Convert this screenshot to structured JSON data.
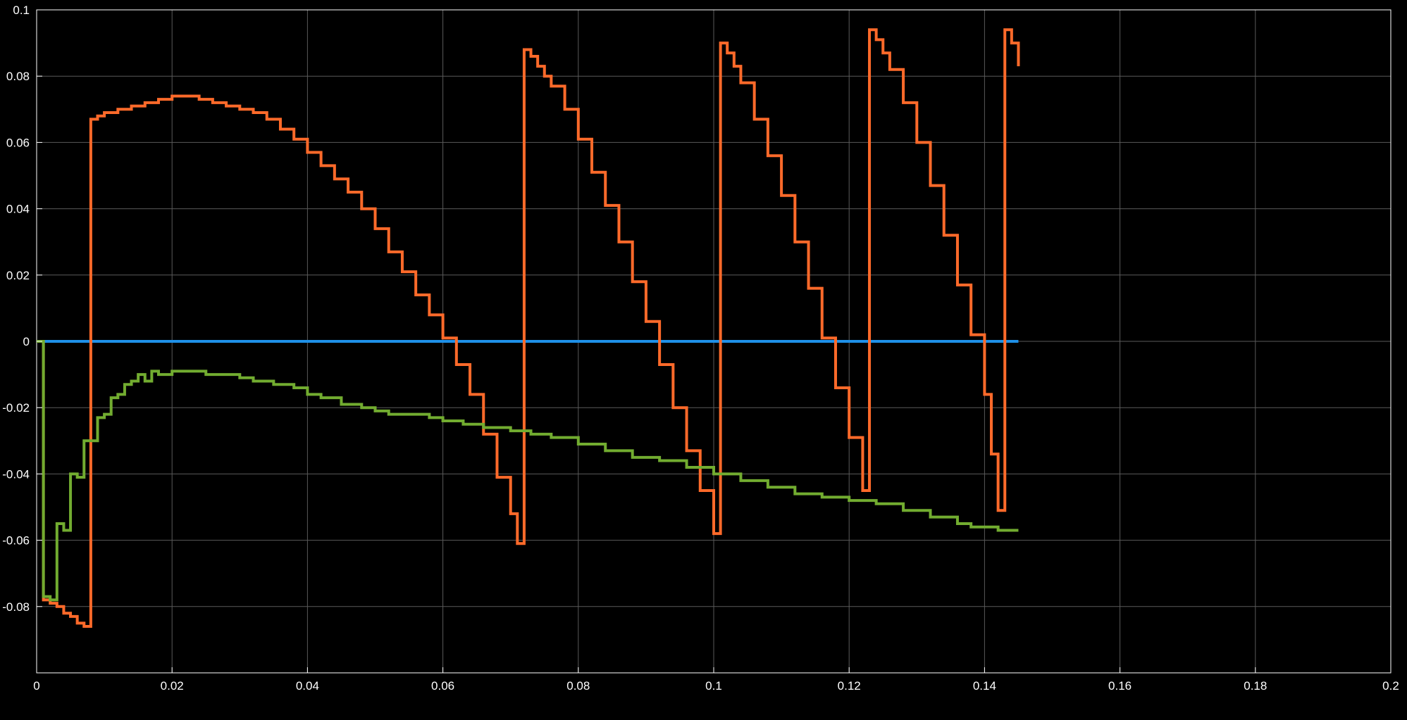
{
  "chart_data": {
    "type": "line",
    "step": true,
    "title": "",
    "xlabel": "",
    "ylabel": "",
    "xlim": [
      0,
      0.2
    ],
    "ylim": [
      -0.1,
      0.1
    ],
    "grid": true,
    "background": "#000000",
    "axes_color": "#ffffff",
    "grid_color": "#5a5a5a",
    "x_ticks": [
      0,
      0.02,
      0.04,
      0.06,
      0.08,
      0.1,
      0.12,
      0.14,
      0.16,
      0.18,
      0.2
    ],
    "x_tick_labels": [
      "0",
      "0.02",
      "0.04",
      "0.06",
      "0.08",
      "0.1",
      "0.12",
      "0.14",
      "0.16",
      "0.18",
      "0.2"
    ],
    "y_ticks": [
      -0.08,
      -0.06,
      -0.04,
      -0.02,
      0,
      0.02,
      0.04,
      0.06,
      0.08,
      0.1
    ],
    "y_tick_labels": [
      "-0.08",
      "-0.06",
      "-0.04",
      "-0.02",
      "0",
      "0.02",
      "0.04",
      "0.06",
      "0.08",
      "0.1"
    ],
    "series": [
      {
        "color": "#1e90e8",
        "x": [
          0,
          0.145
        ],
        "y": [
          0,
          0
        ]
      },
      {
        "color": "#ff6a2a",
        "x": [
          0,
          0.001,
          0.002,
          0.003,
          0.004,
          0.005,
          0.006,
          0.007,
          0.008,
          0.009,
          0.01,
          0.012,
          0.014,
          0.016,
          0.018,
          0.02,
          0.022,
          0.024,
          0.026,
          0.028,
          0.03,
          0.032,
          0.034,
          0.036,
          0.038,
          0.04,
          0.042,
          0.044,
          0.046,
          0.048,
          0.05,
          0.052,
          0.054,
          0.056,
          0.058,
          0.06,
          0.062,
          0.064,
          0.066,
          0.068,
          0.07,
          0.071,
          0.072,
          0.073,
          0.074,
          0.075,
          0.076,
          0.078,
          0.08,
          0.082,
          0.084,
          0.086,
          0.088,
          0.09,
          0.092,
          0.094,
          0.096,
          0.098,
          0.1,
          0.101,
          0.102,
          0.103,
          0.104,
          0.106,
          0.108,
          0.11,
          0.112,
          0.114,
          0.116,
          0.118,
          0.12,
          0.122,
          0.123,
          0.124,
          0.125,
          0.126,
          0.128,
          0.13,
          0.132,
          0.134,
          0.136,
          0.138,
          0.14,
          0.141,
          0.142,
          0.143,
          0.144,
          0.145
        ],
        "y": [
          0,
          -0.078,
          -0.079,
          -0.08,
          -0.082,
          -0.083,
          -0.085,
          -0.086,
          0.067,
          0.068,
          0.069,
          0.07,
          0.071,
          0.072,
          0.073,
          0.074,
          0.074,
          0.073,
          0.072,
          0.071,
          0.07,
          0.069,
          0.067,
          0.064,
          0.061,
          0.057,
          0.053,
          0.049,
          0.045,
          0.04,
          0.034,
          0.027,
          0.021,
          0.014,
          0.008,
          0.001,
          -0.007,
          -0.016,
          -0.028,
          -0.041,
          -0.052,
          -0.061,
          0.088,
          0.086,
          0.083,
          0.08,
          0.077,
          0.07,
          0.061,
          0.051,
          0.041,
          0.03,
          0.018,
          0.006,
          -0.007,
          -0.02,
          -0.033,
          -0.045,
          -0.058,
          0.09,
          0.087,
          0.083,
          0.078,
          0.067,
          0.056,
          0.044,
          0.03,
          0.016,
          0.001,
          -0.014,
          -0.029,
          -0.045,
          0.094,
          0.091,
          0.087,
          0.082,
          0.072,
          0.06,
          0.047,
          0.032,
          0.017,
          0.002,
          -0.016,
          -0.034,
          -0.051,
          0.094,
          0.09,
          0.083
        ]
      },
      {
        "color": "#72ac30",
        "x": [
          0,
          0.001,
          0.002,
          0.003,
          0.004,
          0.005,
          0.006,
          0.007,
          0.008,
          0.009,
          0.01,
          0.011,
          0.012,
          0.013,
          0.014,
          0.015,
          0.016,
          0.017,
          0.018,
          0.02,
          0.022,
          0.025,
          0.028,
          0.03,
          0.032,
          0.035,
          0.038,
          0.04,
          0.042,
          0.045,
          0.048,
          0.05,
          0.052,
          0.055,
          0.058,
          0.06,
          0.063,
          0.066,
          0.068,
          0.07,
          0.073,
          0.076,
          0.08,
          0.084,
          0.088,
          0.092,
          0.096,
          0.1,
          0.104,
          0.108,
          0.112,
          0.116,
          0.12,
          0.124,
          0.128,
          0.132,
          0.136,
          0.138,
          0.14,
          0.142,
          0.145
        ],
        "y": [
          0,
          -0.077,
          -0.078,
          -0.055,
          -0.057,
          -0.04,
          -0.041,
          -0.03,
          -0.03,
          -0.023,
          -0.022,
          -0.017,
          -0.016,
          -0.013,
          -0.012,
          -0.01,
          -0.012,
          -0.009,
          -0.01,
          -0.009,
          -0.009,
          -0.01,
          -0.01,
          -0.011,
          -0.012,
          -0.013,
          -0.014,
          -0.016,
          -0.017,
          -0.019,
          -0.02,
          -0.021,
          -0.022,
          -0.022,
          -0.023,
          -0.024,
          -0.025,
          -0.026,
          -0.026,
          -0.027,
          -0.028,
          -0.029,
          -0.031,
          -0.033,
          -0.035,
          -0.036,
          -0.038,
          -0.04,
          -0.042,
          -0.044,
          -0.046,
          -0.047,
          -0.048,
          -0.049,
          -0.051,
          -0.053,
          -0.055,
          -0.056,
          -0.056,
          -0.057,
          -0.057
        ]
      }
    ]
  }
}
